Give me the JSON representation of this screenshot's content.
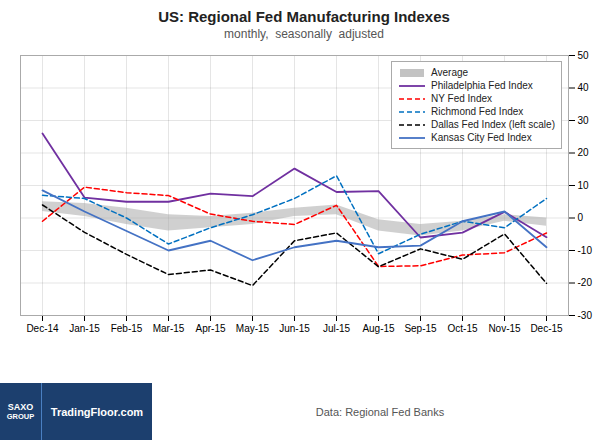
{
  "chart_data": {
    "type": "line",
    "title": "US: Regional Fed Manufacturing Indexes",
    "subtitle": "monthly,  seasonally  adjusted",
    "source": "Data: Regional Fed Banks",
    "annotations": [
      "SAXO",
      "GROUP",
      "TradingFloor.com"
    ],
    "categories": [
      "Dec-14",
      "Jan-15",
      "Feb-15",
      "Mar-15",
      "Apr-15",
      "May-15",
      "Jun-15",
      "Jul-15",
      "Aug-15",
      "Sep-15",
      "Oct-15",
      "Nov-15",
      "Dec-15"
    ],
    "series": [
      {
        "name": "Average",
        "type": "band",
        "color": "#aaaaaa",
        "lower": [
          2.0,
          0.5,
          -2.0,
          -4.0,
          -3.0,
          -2.0,
          0.5,
          1.0,
          -4.0,
          -5.5,
          -4.0,
          -1.0,
          -2.5
        ],
        "upper": [
          5.0,
          4.5,
          3.0,
          1.0,
          0.5,
          1.5,
          3.0,
          4.0,
          -0.5,
          -2.0,
          -1.0,
          1.0,
          0.0
        ]
      },
      {
        "name": "Philadelphia Fed Index",
        "color": "#7030A0",
        "line_style": "solid",
        "values": [
          26,
          6.3,
          5.0,
          5.0,
          7.5,
          6.7,
          15.2,
          8.0,
          8.3,
          -6.0,
          -4.5,
          1.9,
          -5.9
        ]
      },
      {
        "name": "NY Fed Index",
        "color": "#FF0000",
        "line_style": "dashed",
        "values": [
          -1.0,
          9.5,
          7.8,
          6.9,
          1.2,
          -1.0,
          -2.0,
          3.9,
          -14.9,
          -14.7,
          -11.4,
          -10.7,
          -4.6
        ]
      },
      {
        "name": "Richmond Fed Index",
        "color": "#0070C0",
        "line_style": "dashed",
        "values": [
          7.0,
          6.0,
          0.0,
          -8.0,
          -3.0,
          1.0,
          6.0,
          13.0,
          -11.0,
          -5.0,
          -1.0,
          -3.0,
          6.0
        ]
      },
      {
        "name": "Dallas Fed Index (left scale)",
        "color": "#000000",
        "line_style": "dashed",
        "values": [
          4.0,
          -4.4,
          -11.2,
          -17.4,
          -16.0,
          -20.8,
          -7.0,
          -4.6,
          -15.0,
          -9.5,
          -12.7,
          -4.9,
          -20.1
        ]
      },
      {
        "name": "Kansas City Fed Index",
        "color": "#4472C4",
        "line_style": "solid",
        "values": [
          8.5,
          2.0,
          -4.0,
          -10.0,
          -7.0,
          -13.0,
          -9.0,
          -7.0,
          -9.0,
          -8.5,
          -1.0,
          2.0,
          -9.0
        ]
      }
    ],
    "ylim": [
      -30,
      50
    ],
    "yticks": [
      -30,
      -20,
      -10,
      0,
      10,
      20,
      30,
      40,
      50
    ],
    "grid": true,
    "legend": "upper right"
  }
}
